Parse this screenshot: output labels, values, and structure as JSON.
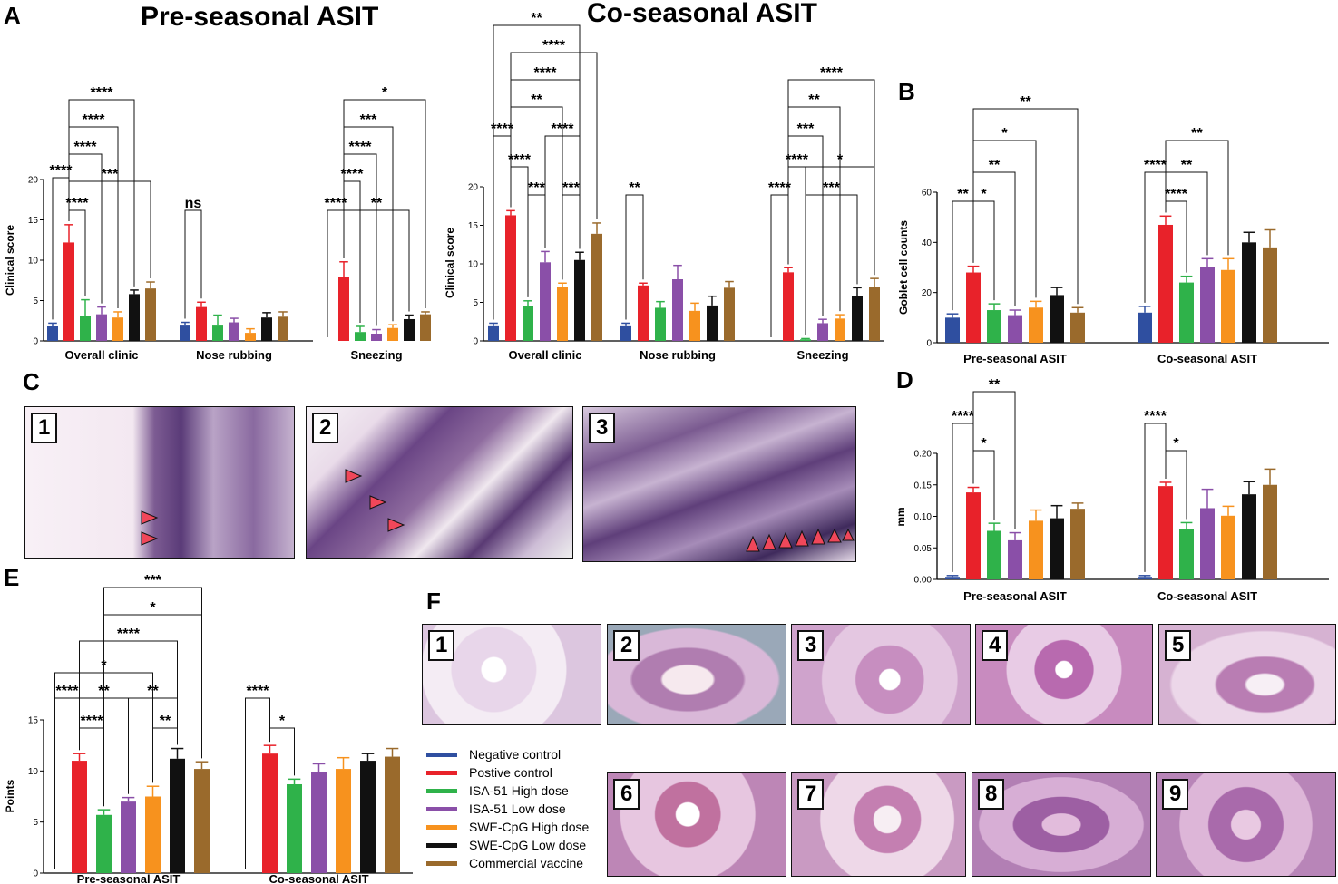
{
  "panel_letters": {
    "A": "A",
    "B": "B",
    "C": "C",
    "D": "D",
    "E": "E",
    "F": "F"
  },
  "titles": {
    "pre": "Pre-seasonal ASIT",
    "co": "Co-seasonal ASIT"
  },
  "legend": [
    {
      "label": "Negative control",
      "color": "#2f4fa0"
    },
    {
      "label": "Postive control",
      "color": "#e8222a"
    },
    {
      "label": "ISA-51 High dose",
      "color": "#2fb24a"
    },
    {
      "label": "ISA-51 Low dose",
      "color": "#8a4fa8"
    },
    {
      "label": "SWE-CpG High dose",
      "color": "#f7921e"
    },
    {
      "label": "SWE-CpG Low dose",
      "color": "#111111"
    },
    {
      "label": "Commercial vaccine",
      "color": "#9a6a2c"
    }
  ],
  "micrographs_c": [
    {
      "label": "1"
    },
    {
      "label": "2"
    },
    {
      "label": "3"
    }
  ],
  "micrographs_f": [
    {
      "label": "1"
    },
    {
      "label": "2"
    },
    {
      "label": "3"
    },
    {
      "label": "4"
    },
    {
      "label": "5"
    },
    {
      "label": "6"
    },
    {
      "label": "7"
    },
    {
      "label": "8"
    },
    {
      "label": "9"
    }
  ],
  "chart_data": [
    {
      "id": "A_pre",
      "type": "bar",
      "ylabel": "Clinical score",
      "ylim": [
        0,
        20
      ],
      "yticks": [
        0,
        5,
        10,
        15,
        20
      ],
      "categories": [
        "Overall clinic",
        "Nose rubbing",
        "Sneezing"
      ],
      "series_colors": [
        "#2f4fa0",
        "#e8222a",
        "#2fb24a",
        "#8a4fa8",
        "#f7921e",
        "#111111",
        "#9a6a2c"
      ],
      "values": [
        [
          1.8,
          12.2,
          3.1,
          3.3,
          2.9,
          5.8,
          6.5
        ],
        [
          1.9,
          4.2,
          1.9,
          2.3,
          1.0,
          2.9,
          3.0
        ],
        [
          0,
          7.9,
          1.1,
          0.9,
          1.6,
          2.7,
          3.3
        ]
      ],
      "errors": [
        [
          0.4,
          2.2,
          2.0,
          0.9,
          0.7,
          0.5,
          0.8
        ],
        [
          0.4,
          0.6,
          1.3,
          0.5,
          0.5,
          0.6,
          0.6
        ],
        [
          0,
          1.9,
          0.7,
          0.5,
          0.4,
          0.5,
          0.3
        ]
      ],
      "annotations": [
        {
          "cat": 0,
          "a": 0,
          "b": 1,
          "level": 196,
          "text": "****"
        },
        {
          "cat": 0,
          "a": 1,
          "b": 2,
          "level": 232,
          "text": "****"
        },
        {
          "cat": 0,
          "a": 1,
          "b": 6,
          "level": 200,
          "text": "***"
        },
        {
          "cat": 0,
          "a": 1,
          "b": 3,
          "level": 170,
          "text": "****"
        },
        {
          "cat": 0,
          "a": 1,
          "b": 4,
          "level": 140,
          "text": "****"
        },
        {
          "cat": 0,
          "a": 1,
          "b": 5,
          "level": 110,
          "text": "****"
        },
        {
          "cat": 1,
          "a": 0,
          "b": 1,
          "level": 232,
          "text": "ns"
        },
        {
          "cat": 2,
          "a": 0,
          "b": 1,
          "level": 232,
          "text": "****"
        },
        {
          "cat": 2,
          "a": 1,
          "b": 2,
          "level": 200,
          "text": "****"
        },
        {
          "cat": 2,
          "a": 1,
          "b": 5,
          "level": 232,
          "text": "**"
        },
        {
          "cat": 2,
          "a": 1,
          "b": 3,
          "level": 170,
          "text": "****"
        },
        {
          "cat": 2,
          "a": 1,
          "b": 4,
          "level": 140,
          "text": "***"
        },
        {
          "cat": 2,
          "a": 1,
          "b": 6,
          "level": 110,
          "text": "*"
        }
      ]
    },
    {
      "id": "A_co",
      "type": "bar",
      "ylabel": "Clinical score",
      "ylim": [
        0,
        20
      ],
      "yticks": [
        0,
        5,
        10,
        15,
        20
      ],
      "categories": [
        "Overall clinic",
        "Nose rubbing",
        "Sneezing"
      ],
      "series_colors": [
        "#2f4fa0",
        "#e8222a",
        "#2fb24a",
        "#8a4fa8",
        "#f7921e",
        "#111111",
        "#9a6a2c"
      ],
      "values": [
        [
          1.9,
          16.3,
          4.5,
          10.2,
          7.0,
          10.5,
          13.9
        ],
        [
          1.9,
          7.2,
          4.3,
          8.0,
          3.9,
          4.6,
          6.9
        ],
        [
          0,
          8.9,
          0.2,
          2.3,
          2.9,
          5.8,
          7.0
        ]
      ],
      "errors": [
        [
          0.4,
          0.6,
          0.7,
          1.4,
          0.5,
          1.0,
          1.4
        ],
        [
          0.4,
          0.3,
          0.8,
          1.8,
          1.0,
          1.2,
          0.8
        ],
        [
          0,
          0.6,
          0.1,
          0.5,
          0.5,
          1.1,
          1.1
        ]
      ],
      "annotations": [
        {
          "cat": 0,
          "a": 0,
          "b": 1,
          "level": 150,
          "text": "****"
        },
        {
          "cat": 0,
          "a": 1,
          "b": 2,
          "level": 184,
          "text": "****"
        },
        {
          "cat": 0,
          "a": 2,
          "b": 3,
          "level": 215,
          "text": "***"
        },
        {
          "cat": 0,
          "a": 3,
          "b": 5,
          "level": 150,
          "text": "****"
        },
        {
          "cat": 0,
          "a": 4,
          "b": 5,
          "level": 215,
          "text": "***"
        },
        {
          "cat": 0,
          "a": 1,
          "b": 4,
          "level": 118,
          "text": "**"
        },
        {
          "cat": 0,
          "a": 1,
          "b": 5,
          "level": 88,
          "text": "****"
        },
        {
          "cat": 0,
          "a": 1,
          "b": 6,
          "level": 58,
          "text": "****"
        },
        {
          "cat": 0,
          "a": 0,
          "b": 5,
          "level": 28,
          "text": "**"
        },
        {
          "cat": 1,
          "a": 0,
          "b": 1,
          "level": 215,
          "text": "**"
        },
        {
          "cat": 2,
          "a": 0,
          "b": 1,
          "level": 215,
          "text": "****"
        },
        {
          "cat": 2,
          "a": 1,
          "b": 2,
          "level": 184,
          "text": "****"
        },
        {
          "cat": 2,
          "a": 1,
          "b": 3,
          "level": 150,
          "text": "***"
        },
        {
          "cat": 2,
          "a": 1,
          "b": 4,
          "level": 118,
          "text": "**"
        },
        {
          "cat": 2,
          "a": 1,
          "b": 6,
          "level": 88,
          "text": "****"
        },
        {
          "cat": 2,
          "a": 2,
          "b": 5,
          "level": 215,
          "text": "***"
        },
        {
          "cat": 2,
          "a": 2,
          "b": 6,
          "level": 184,
          "text": "*"
        }
      ]
    },
    {
      "id": "B",
      "type": "bar",
      "ylabel": "Goblet cell counts",
      "ylim": [
        0,
        60
      ],
      "yticks": [
        0,
        20,
        40,
        60
      ],
      "categories": [
        "Pre-seasonal ASIT",
        "Co-seasonal ASIT"
      ],
      "series_colors": [
        "#2f4fa0",
        "#e8222a",
        "#2fb24a",
        "#8a4fa8",
        "#f7921e",
        "#111111",
        "#9a6a2c"
      ],
      "values": [
        [
          10,
          28,
          13,
          11,
          14,
          19,
          12
        ],
        [
          12,
          47,
          24,
          30,
          29,
          40,
          38
        ]
      ],
      "errors": [
        [
          1.5,
          2.5,
          2.5,
          2.0,
          2.5,
          3.0,
          2.0
        ],
        [
          2.5,
          3.5,
          2.5,
          3.5,
          4.5,
          4.0,
          7.0
        ]
      ],
      "annotations": [
        {
          "cat": 0,
          "a": 0,
          "b": 1,
          "level": 222,
          "text": "**"
        },
        {
          "cat": 0,
          "a": 1,
          "b": 2,
          "level": 222,
          "text": "*"
        },
        {
          "cat": 0,
          "a": 1,
          "b": 3,
          "level": 190,
          "text": "**"
        },
        {
          "cat": 0,
          "a": 1,
          "b": 4,
          "level": 155,
          "text": "*"
        },
        {
          "cat": 0,
          "a": 1,
          "b": 6,
          "level": 120,
          "text": "**"
        },
        {
          "cat": 1,
          "a": 0,
          "b": 1,
          "level": 190,
          "text": "****"
        },
        {
          "cat": 1,
          "a": 1,
          "b": 2,
          "level": 222,
          "text": "****"
        },
        {
          "cat": 1,
          "a": 1,
          "b": 3,
          "level": 190,
          "text": "**"
        },
        {
          "cat": 1,
          "a": 1,
          "b": 4,
          "level": 155,
          "text": "**"
        }
      ]
    },
    {
      "id": "D",
      "type": "bar",
      "ylabel": "mm",
      "ylim": [
        0,
        0.2
      ],
      "yticks": [
        0.0,
        0.05,
        0.1,
        0.15,
        0.2
      ],
      "categories": [
        "Pre-seasonal ASIT",
        "Co-seasonal ASIT"
      ],
      "series_colors": [
        "#2f4fa0",
        "#e8222a",
        "#2fb24a",
        "#8a4fa8",
        "#f7921e",
        "#111111",
        "#9a6a2c"
      ],
      "values": [
        [
          0.004,
          0.138,
          0.077,
          0.062,
          0.093,
          0.097,
          0.112
        ],
        [
          0.004,
          0.148,
          0.08,
          0.113,
          0.101,
          0.135,
          0.15
        ]
      ],
      "errors": [
        [
          0.002,
          0.008,
          0.012,
          0.012,
          0.017,
          0.02,
          0.009
        ],
        [
          0.002,
          0.006,
          0.01,
          0.03,
          0.015,
          0.02,
          0.025
        ]
      ],
      "annotations": [
        {
          "cat": 0,
          "a": 0,
          "b": 1,
          "level": 467,
          "text": "****"
        },
        {
          "cat": 0,
          "a": 1,
          "b": 2,
          "level": 497,
          "text": "*"
        },
        {
          "cat": 0,
          "a": 1,
          "b": 3,
          "level": 432,
          "text": "**"
        },
        {
          "cat": 1,
          "a": 0,
          "b": 1,
          "level": 467,
          "text": "****"
        },
        {
          "cat": 1,
          "a": 1,
          "b": 2,
          "level": 497,
          "text": "*"
        }
      ]
    },
    {
      "id": "E",
      "type": "bar",
      "ylabel": "Points",
      "ylim": [
        0,
        15
      ],
      "yticks": [
        0,
        5,
        10,
        15
      ],
      "categories": [
        "Pre-seasonal ASIT",
        "Co-seasonal ASIT"
      ],
      "series_colors": [
        "#2f4fa0",
        "#e8222a",
        "#2fb24a",
        "#8a4fa8",
        "#f7921e",
        "#111111",
        "#9a6a2c"
      ],
      "values": [
        [
          0,
          11.0,
          5.7,
          7.0,
          7.5,
          11.2,
          10.2
        ],
        [
          0,
          11.7,
          8.7,
          9.9,
          10.2,
          11.0,
          11.4
        ]
      ],
      "errors": [
        [
          0,
          0.7,
          0.5,
          0.4,
          1.0,
          1.0,
          0.7
        ],
        [
          0,
          0.8,
          0.5,
          0.8,
          1.1,
          0.7,
          0.8
        ]
      ],
      "annotations": [
        {
          "cat": 0,
          "a": 0,
          "b": 1,
          "level": 770,
          "text": "****"
        },
        {
          "cat": 0,
          "a": 1,
          "b": 2,
          "level": 803,
          "text": "****"
        },
        {
          "cat": 0,
          "a": 1,
          "b": 3,
          "level": 770,
          "text": "**"
        },
        {
          "cat": 0,
          "a": 3,
          "b": 5,
          "level": 770,
          "text": "**"
        },
        {
          "cat": 0,
          "a": 4,
          "b": 5,
          "level": 803,
          "text": "**"
        },
        {
          "cat": 0,
          "a": 0,
          "b": 4,
          "level": 742,
          "text": "*"
        },
        {
          "cat": 0,
          "a": 1,
          "b": 5,
          "level": 707,
          "text": "****"
        },
        {
          "cat": 0,
          "a": 2,
          "b": 6,
          "level": 678,
          "text": "*"
        },
        {
          "cat": 0,
          "a": 2,
          "b": 6,
          "level": 648,
          "text": "***"
        },
        {
          "cat": 1,
          "a": 0,
          "b": 1,
          "level": 770,
          "text": "****"
        },
        {
          "cat": 1,
          "a": 1,
          "b": 2,
          "level": 803,
          "text": "*"
        }
      ]
    }
  ]
}
